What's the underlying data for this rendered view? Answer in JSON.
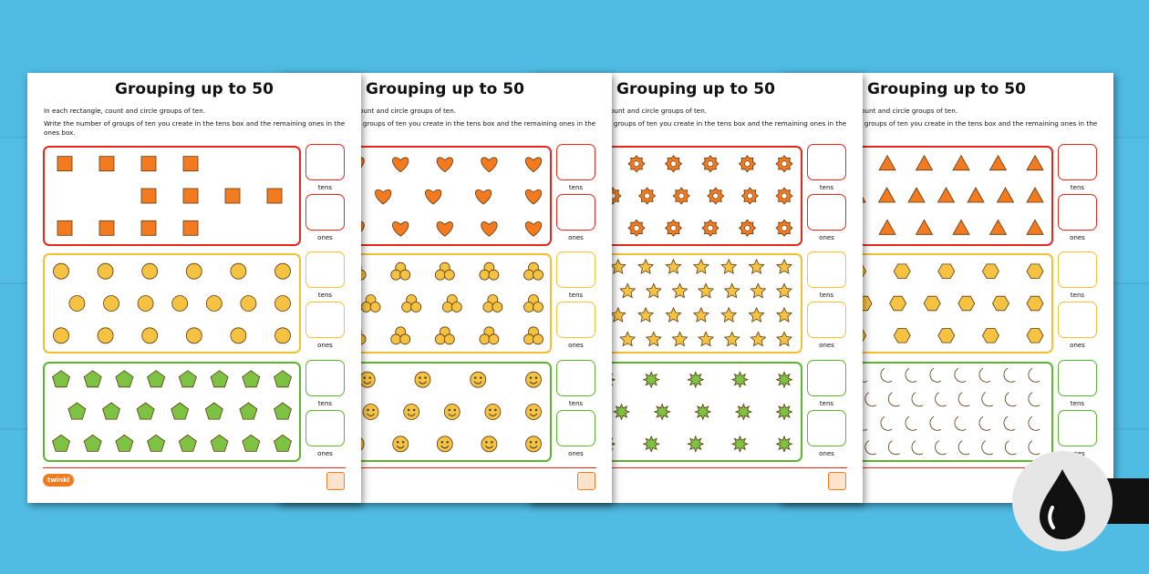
{
  "pages": [
    {
      "title": "Grouping up to 50",
      "instr1": "In each rectangle, count and circle groups of ten.",
      "instr2": "Write the number of groups of ten you create in the tens box and the remaining ones in the ones box.",
      "tens": "tens",
      "ones": "ones",
      "logo": "twinkl",
      "panels": [
        {
          "shape": "square",
          "color": "#f47a20",
          "rows": [
            [
              0,
              1,
              2,
              3
            ],
            [
              2,
              3,
              4,
              5
            ],
            [
              0,
              1,
              2,
              3
            ]
          ]
        },
        {
          "shape": "circle",
          "color": "#f5c242",
          "rows": [
            6,
            7,
            6
          ]
        },
        {
          "shape": "pentagon",
          "color": "#7dc242",
          "rows": [
            8,
            7,
            8
          ]
        }
      ]
    },
    {
      "title": "Grouping up to 50",
      "instr1": "In each rectangle, count and circle groups of ten.",
      "instr2": "Write the number of groups of ten you create in the tens box and the remaining ones in the ones box.",
      "tens": "tens",
      "ones": "ones",
      "logo": "twinkl",
      "panels": [
        {
          "shape": "heart",
          "color": "#f47a20",
          "rows": [
            6,
            5,
            6
          ]
        },
        {
          "shape": "trefoil",
          "color": "#f5c242",
          "rows": [
            6,
            6,
            6
          ]
        },
        {
          "shape": "smiley",
          "color": "#f5c242",
          "rows": [
            5,
            6,
            6
          ]
        }
      ]
    },
    {
      "title": "Grouping up to 50",
      "instr1": "In each rectangle, count and circle groups of ten.",
      "instr2": "Write the number of groups of ten you create in the tens box and the remaining ones in the ones box.",
      "tens": "tens",
      "ones": "ones",
      "logo": "twinkl",
      "panels": [
        {
          "shape": "flower",
          "color": "#f47a20",
          "rows": [
            7,
            7,
            7
          ]
        },
        {
          "shape": "star",
          "color": "#f5c242",
          "rows": [
            9,
            9,
            9,
            9
          ]
        },
        {
          "shape": "burst",
          "color": "#7dc242",
          "rows": [
            6,
            6,
            6
          ]
        }
      ]
    },
    {
      "title": "Grouping up to 50",
      "instr1": "In each rectangle, count and circle groups of ten.",
      "instr2": "Write the number of groups of ten you create in the tens box and the remaining ones in the ones box.",
      "tens": "tens",
      "ones": "ones",
      "logo": "twinkl",
      "panels": [
        {
          "shape": "triangle",
          "color": "#f47a20",
          "rows": [
            7,
            8,
            7
          ]
        },
        {
          "shape": "hexagon",
          "color": "#f5c242",
          "rows": [
            6,
            7,
            6
          ]
        },
        {
          "shape": "moon",
          "color": "#7dc242",
          "rows": [
            10,
            10,
            10,
            10
          ]
        }
      ]
    }
  ],
  "panel_borders": [
    "#e8271a",
    "#f5c030",
    "#5db52e"
  ],
  "badge": {
    "icon": "ink-drop-icon"
  }
}
